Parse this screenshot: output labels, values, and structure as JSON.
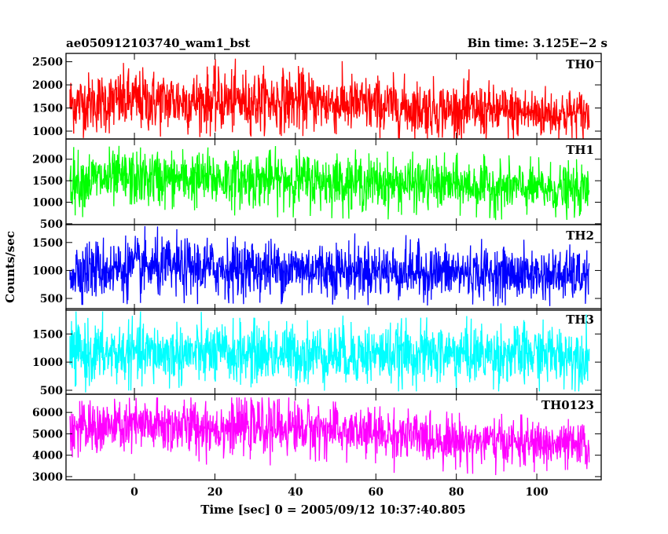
{
  "header": {
    "title": "ae050912103740_wam1_bst",
    "bin_time": "Bin time: 3.125E−2 s"
  },
  "chart_data": {
    "type": "line",
    "title": "ae050912103740_wam1_bst",
    "subtitle": "Bin time: 3.125E−2 s",
    "xlabel": "Time [sec] 0 = 2005/09/12 10:37:40.805",
    "ylabel": "Counts/sec",
    "xlim": [
      -17,
      116
    ],
    "x_ticks": [
      0,
      20,
      40,
      60,
      80,
      100
    ],
    "x_range": [
      -16,
      113
    ],
    "bin_time": 0.03125,
    "grid": false,
    "legend": "none",
    "panels": [
      {
        "name": "TH0",
        "color": "#ff0000",
        "ylim": [
          830,
          2680
        ],
        "yticks": [
          1000,
          1500,
          2000,
          2500
        ],
        "trend": {
          "x": [
            -16,
            0,
            40,
            60,
            80,
            113
          ],
          "mean": [
            1600,
            1650,
            1650,
            1550,
            1450,
            1350
          ]
        },
        "spread": {
          "low": [
            850,
            850,
            900,
            850,
            820,
            800
          ],
          "high": [
            2500,
            2600,
            2600,
            2450,
            2350,
            2200
          ]
        }
      },
      {
        "name": "TH1",
        "color": "#00ff00",
        "ylim": [
          480,
          2470
        ],
        "yticks": [
          500,
          1000,
          1500,
          2000
        ],
        "trend": {
          "x": [
            -16,
            0,
            40,
            60,
            80,
            113
          ],
          "mean": [
            1500,
            1550,
            1520,
            1450,
            1400,
            1250
          ]
        },
        "spread": {
          "low": [
            600,
            650,
            650,
            600,
            600,
            550
          ],
          "high": [
            2300,
            2350,
            2300,
            2200,
            2150,
            2000
          ]
        }
      },
      {
        "name": "TH2",
        "color": "#0000ff",
        "ylim": [
          290,
          1820
        ],
        "yticks": [
          500,
          1000,
          1500
        ],
        "trend": {
          "x": [
            -16,
            0,
            40,
            60,
            80,
            113
          ],
          "mean": [
            1000,
            1050,
            1030,
            1000,
            960,
            900
          ]
        },
        "spread": {
          "low": [
            380,
            400,
            400,
            380,
            370,
            350
          ],
          "high": [
            1750,
            1800,
            1700,
            1650,
            1600,
            1500
          ]
        }
      },
      {
        "name": "TH3",
        "color": "#00ffff",
        "ylim": [
          430,
          1950
        ],
        "yticks": [
          500,
          1000,
          1500
        ],
        "trend": {
          "x": [
            -16,
            0,
            40,
            60,
            80,
            113
          ],
          "mean": [
            1150,
            1150,
            1150,
            1140,
            1140,
            1130
          ]
        },
        "spread": {
          "low": [
            450,
            500,
            500,
            480,
            480,
            480
          ],
          "high": [
            1900,
            1900,
            1880,
            1850,
            1850,
            1850
          ]
        }
      },
      {
        "name": "TH0123",
        "color": "#ff00ff",
        "ylim": [
          2850,
          6850
        ],
        "yticks": [
          3000,
          4000,
          5000,
          6000
        ],
        "trend": {
          "x": [
            -16,
            0,
            40,
            60,
            80,
            113
          ],
          "mean": [
            5200,
            5350,
            5300,
            5000,
            4700,
            4400
          ]
        },
        "spread": {
          "low": [
            3100,
            3300,
            3400,
            3200,
            3100,
            3000
          ],
          "high": [
            6500,
            6700,
            6700,
            6300,
            6000,
            5800
          ]
        }
      }
    ]
  }
}
